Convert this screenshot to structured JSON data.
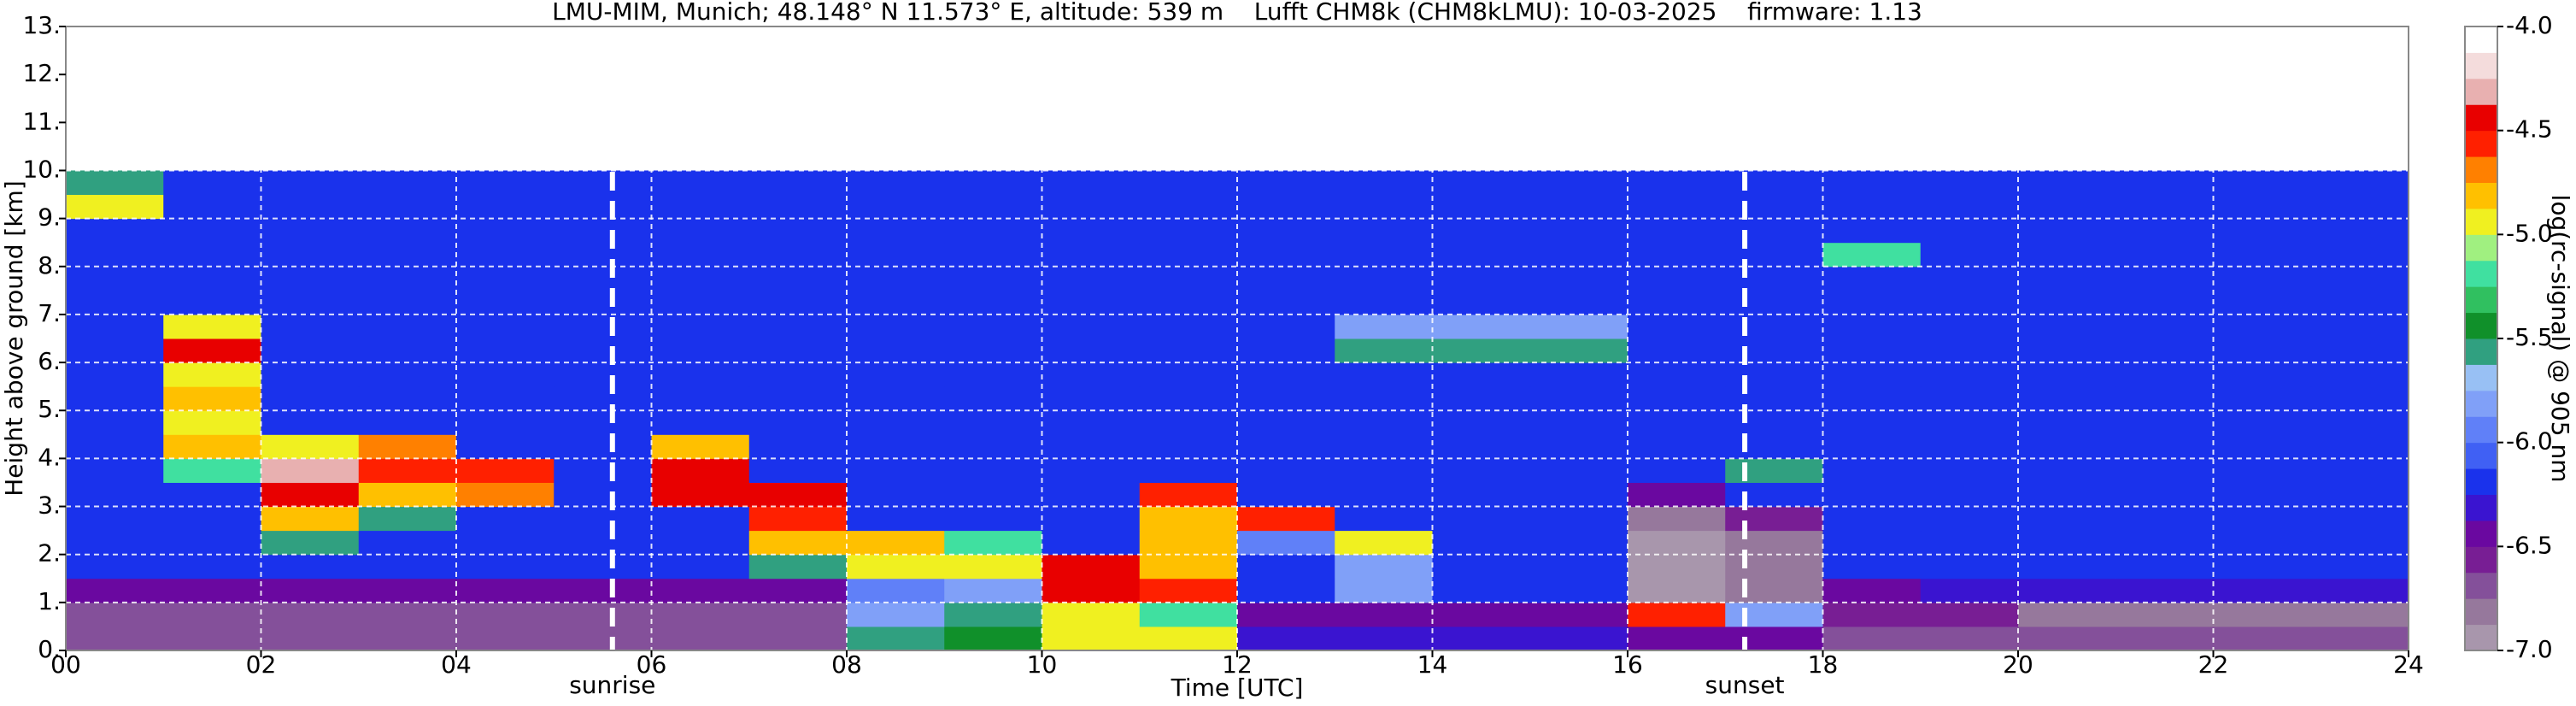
{
  "chart_data": {
    "type": "heatmap",
    "title": "LMU-MIM, Munich; 48.148° N 11.573° E, altitude: 539 m    Lufft CHM8k (CHM8kLMU): 10-03-2025    firmware: 1.13",
    "x_label": "Time [UTC]",
    "y_label": "Height above ground [km]",
    "colorbar_label": "log(rc-signal) @ 905 nm",
    "xlim": [
      0,
      24
    ],
    "ylim": [
      0,
      13
    ],
    "clim": [
      -7,
      -4
    ],
    "xticks": [
      {
        "value": 0,
        "label": "00"
      },
      {
        "value": 2,
        "label": "02"
      },
      {
        "value": 4,
        "label": "04"
      },
      {
        "value": 6,
        "label": "06"
      },
      {
        "value": 8,
        "label": "08"
      },
      {
        "value": 10,
        "label": "10"
      },
      {
        "value": 12,
        "label": "12"
      },
      {
        "value": 14,
        "label": "14"
      },
      {
        "value": 16,
        "label": "16"
      },
      {
        "value": 18,
        "label": "18"
      },
      {
        "value": 20,
        "label": "20"
      },
      {
        "value": 22,
        "label": "22"
      },
      {
        "value": 24,
        "label": "24"
      }
    ],
    "yticks": [
      {
        "value": 0,
        "label": "0."
      },
      {
        "value": 1,
        "label": "1."
      },
      {
        "value": 2,
        "label": "2."
      },
      {
        "value": 3,
        "label": "3."
      },
      {
        "value": 4,
        "label": "4."
      },
      {
        "value": 5,
        "label": "5."
      },
      {
        "value": 6,
        "label": "6."
      },
      {
        "value": 7,
        "label": "7."
      },
      {
        "value": 8,
        "label": "8."
      },
      {
        "value": 9,
        "label": "9."
      },
      {
        "value": 10,
        "label": "10."
      },
      {
        "value": 11,
        "label": "11."
      },
      {
        "value": 12,
        "label": "12."
      },
      {
        "value": 13,
        "label": "13."
      }
    ],
    "cticks": [
      {
        "value": -7,
        "label": "-7.0"
      },
      -6.5,
      {
        "value": -6,
        "label": "-6.0"
      },
      -5.5,
      {
        "value": -5,
        "label": "-5.0"
      },
      -4.5,
      {
        "value": -4,
        "label": "-4.0"
      }
    ],
    "grid": true,
    "colorscale": [
      "#a896ac",
      "#96789c",
      "#84509a",
      "#781e94",
      "#6a08a0",
      "#3a14d0",
      "#1a32ec",
      "#4060f4",
      "#6080f8",
      "#80a0f8",
      "#98c0f4",
      "#30a080",
      "#10902a",
      "#30c060",
      "#40e0a0",
      "#a0f080",
      "#f0f020",
      "#ffc000",
      "#ff8000",
      "#ff2000",
      "#e80000",
      "#e8b0b0",
      "#f4dcdc",
      "#ffffff"
    ],
    "annotations": [
      {
        "text": "sunrise",
        "x": 5.6
      },
      {
        "text": "sunset",
        "x": 17.2
      }
    ],
    "x_edges": [
      0,
      1,
      2,
      3,
      4,
      5,
      6,
      7,
      8,
      9,
      10,
      11,
      12,
      13,
      14,
      15,
      16,
      17,
      18,
      19,
      20,
      21,
      22,
      23,
      24
    ],
    "y_edges": [
      0,
      0.5,
      1,
      1.5,
      2,
      2.5,
      3,
      3.5,
      4,
      4.5,
      5,
      5.5,
      6,
      6.5,
      7,
      7.5,
      8,
      8.5,
      9,
      9.5,
      10
    ],
    "z": [
      [
        -6.7,
        -6.7,
        -6.7,
        -6.7,
        -6.7,
        -6.7,
        -6.7,
        -6.7,
        -5.6,
        -5.4,
        -5.0,
        -5.0,
        -6.3,
        -6.3,
        -6.3,
        -6.3,
        -6.4,
        -6.5,
        -6.7,
        -6.7,
        -6.7,
        -6.7,
        -6.7,
        -6.7
      ],
      [
        -6.7,
        -6.7,
        -6.7,
        -6.7,
        -6.7,
        -6.7,
        -6.7,
        -6.7,
        -5.8,
        -5.6,
        -5.0,
        -5.2,
        -6.4,
        -6.4,
        -6.4,
        -6.4,
        -4.6,
        -5.8,
        -6.6,
        -6.6,
        -6.8,
        -6.8,
        -6.8,
        -6.8
      ],
      [
        -6.5,
        -6.5,
        -6.5,
        -6.5,
        -6.5,
        -6.5,
        -6.5,
        -6.5,
        -6.0,
        -5.8,
        -4.4,
        -4.6,
        -6.2,
        -5.8,
        -6.2,
        -6.2,
        -6.9,
        -6.8,
        -6.4,
        -6.3,
        -6.3,
        -6.3,
        -6.3,
        -6.3
      ],
      [
        -6.2,
        -6.2,
        -6.2,
        -6.2,
        -6.2,
        -6.2,
        -6.2,
        -5.6,
        -4.9,
        -4.9,
        -4.4,
        -4.8,
        -6.2,
        -5.8,
        -6.2,
        -6.2,
        -6.9,
        -6.8,
        -6.2,
        -6.2,
        -6.2,
        -6.2,
        -6.2,
        -6.2
      ],
      [
        -6.2,
        -6.2,
        -5.6,
        -6.2,
        -6.2,
        -6.2,
        -6.2,
        -4.8,
        -4.8,
        -5.2,
        -6.2,
        -4.8,
        -6.0,
        -5.0,
        -6.2,
        -6.2,
        -6.9,
        -6.8,
        -6.2,
        -6.2,
        -6.2,
        -6.2,
        -6.2,
        -6.2
      ],
      [
        -6.2,
        -6.2,
        -4.8,
        -5.6,
        -6.2,
        -6.2,
        -6.2,
        -4.6,
        -6.2,
        -6.2,
        -6.2,
        -4.8,
        -4.6,
        -6.2,
        -6.2,
        -6.2,
        -6.8,
        -6.6,
        -6.2,
        -6.2,
        -6.2,
        -6.2,
        -6.2,
        -6.2
      ],
      [
        -6.2,
        -6.2,
        -4.4,
        -4.8,
        -4.7,
        -6.2,
        -4.5,
        -4.5,
        -6.2,
        -6.2,
        -6.2,
        -4.6,
        -6.2,
        -6.2,
        -6.2,
        -6.2,
        -6.5,
        -6.2,
        -6.2,
        -6.2,
        -6.2,
        -6.2,
        -6.2,
        -6.2
      ],
      [
        -6.2,
        -5.2,
        -4.3,
        -4.6,
        -4.6,
        -6.2,
        -4.4,
        -6.2,
        -6.2,
        -6.2,
        -6.2,
        -6.2,
        -6.2,
        -6.2,
        -6.2,
        -6.2,
        -6.2,
        -5.6,
        -6.2,
        -6.2,
        -6.2,
        -6.2,
        -6.2,
        -6.2
      ],
      [
        -6.2,
        -4.8,
        -5.0,
        -4.7,
        -6.2,
        -6.2,
        -4.8,
        -6.2,
        -6.2,
        -6.2,
        -6.2,
        -6.2,
        -6.2,
        -6.2,
        -6.2,
        -6.2,
        -6.2,
        -6.2,
        -6.2,
        -6.2,
        -6.2,
        -6.2,
        -6.2,
        -6.2
      ],
      [
        -6.2,
        -4.9,
        -6.2,
        -6.2,
        -6.2,
        -6.2,
        -6.2,
        -6.2,
        -6.2,
        -6.2,
        -6.2,
        -6.2,
        -6.2,
        -6.2,
        -6.2,
        -6.2,
        -6.2,
        -6.2,
        -6.2,
        -6.2,
        -6.2,
        -6.2,
        -6.2,
        -6.2
      ],
      [
        -6.2,
        -4.8,
        -6.2,
        -6.2,
        -6.2,
        -6.2,
        -6.2,
        -6.2,
        -6.2,
        -6.2,
        -6.2,
        -6.2,
        -6.2,
        -6.2,
        -6.2,
        -6.2,
        -6.2,
        -6.2,
        -6.2,
        -6.2,
        -6.2,
        -6.2,
        -6.2,
        -6.2
      ],
      [
        -6.2,
        -4.9,
        -6.2,
        -6.2,
        -6.2,
        -6.2,
        -6.2,
        -6.2,
        -6.2,
        -6.2,
        -6.2,
        -6.2,
        -6.2,
        -6.2,
        -6.2,
        -6.2,
        -6.2,
        -6.2,
        -6.2,
        -6.2,
        -6.2,
        -6.2,
        -6.2,
        -6.2
      ],
      [
        -6.2,
        -4.5,
        -6.2,
        -6.2,
        -6.2,
        -6.2,
        -6.2,
        -6.2,
        -6.2,
        -6.2,
        -6.2,
        -6.2,
        -6.2,
        -5.6,
        -5.6,
        -5.6,
        -6.2,
        -6.2,
        -6.2,
        -6.2,
        -6.2,
        -6.2,
        -6.2,
        -6.2
      ],
      [
        -6.2,
        -5.0,
        -6.2,
        -6.2,
        -6.2,
        -6.2,
        -6.2,
        -6.2,
        -6.2,
        -6.2,
        -6.2,
        -6.2,
        -6.2,
        -5.8,
        -5.8,
        -5.8,
        -6.2,
        -6.2,
        -6.2,
        -6.2,
        -6.2,
        -6.2,
        -6.2,
        -6.2
      ],
      [
        -6.2,
        -6.2,
        -6.2,
        -6.2,
        -6.2,
        -6.2,
        -6.2,
        -6.2,
        -6.2,
        -6.2,
        -6.2,
        -6.2,
        -6.2,
        -6.2,
        -6.2,
        -6.2,
        -6.2,
        -6.2,
        -6.2,
        -6.2,
        -6.2,
        -6.2,
        -6.2,
        -6.2
      ],
      [
        -6.2,
        -6.2,
        -6.2,
        -6.2,
        -6.2,
        -6.2,
        -6.2,
        -6.2,
        -6.2,
        -6.2,
        -6.2,
        -6.2,
        -6.2,
        -6.2,
        -6.2,
        -6.2,
        -6.2,
        -6.2,
        -6.2,
        -6.2,
        -6.2,
        -6.2,
        -6.2,
        -6.2
      ],
      [
        -6.2,
        -6.2,
        -6.2,
        -6.2,
        -6.2,
        -6.2,
        -6.2,
        -6.2,
        -6.2,
        -6.2,
        -6.2,
        -6.2,
        -6.2,
        -6.2,
        -6.2,
        -6.2,
        -6.2,
        -6.2,
        -5.2,
        -6.2,
        -6.2,
        -6.2,
        -6.2,
        -6.2
      ],
      [
        -6.2,
        -6.2,
        -6.2,
        -6.2,
        -6.2,
        -6.2,
        -6.2,
        -6.2,
        -6.2,
        -6.2,
        -6.2,
        -6.2,
        -6.2,
        -6.2,
        -6.2,
        -6.2,
        -6.2,
        -6.2,
        -6.2,
        -6.2,
        -6.2,
        -6.2,
        -6.2,
        -6.2
      ],
      [
        -5.0,
        -6.2,
        -6.2,
        -6.2,
        -6.2,
        -6.2,
        -6.2,
        -6.2,
        -6.2,
        -6.2,
        -6.2,
        -6.2,
        -6.2,
        -6.2,
        -6.2,
        -6.2,
        -6.2,
        -6.2,
        -6.2,
        -6.2,
        -6.2,
        -6.2,
        -6.2,
        -6.2
      ],
      [
        -5.6,
        -6.2,
        -6.2,
        -6.2,
        -6.2,
        -6.2,
        -6.2,
        -6.2,
        -6.2,
        -6.2,
        -6.2,
        -6.2,
        -6.2,
        -6.2,
        -6.2,
        -6.2,
        -6.2,
        -6.2,
        -6.2,
        -6.2,
        -6.2,
        -6.2,
        -6.2,
        -6.2
      ]
    ]
  }
}
